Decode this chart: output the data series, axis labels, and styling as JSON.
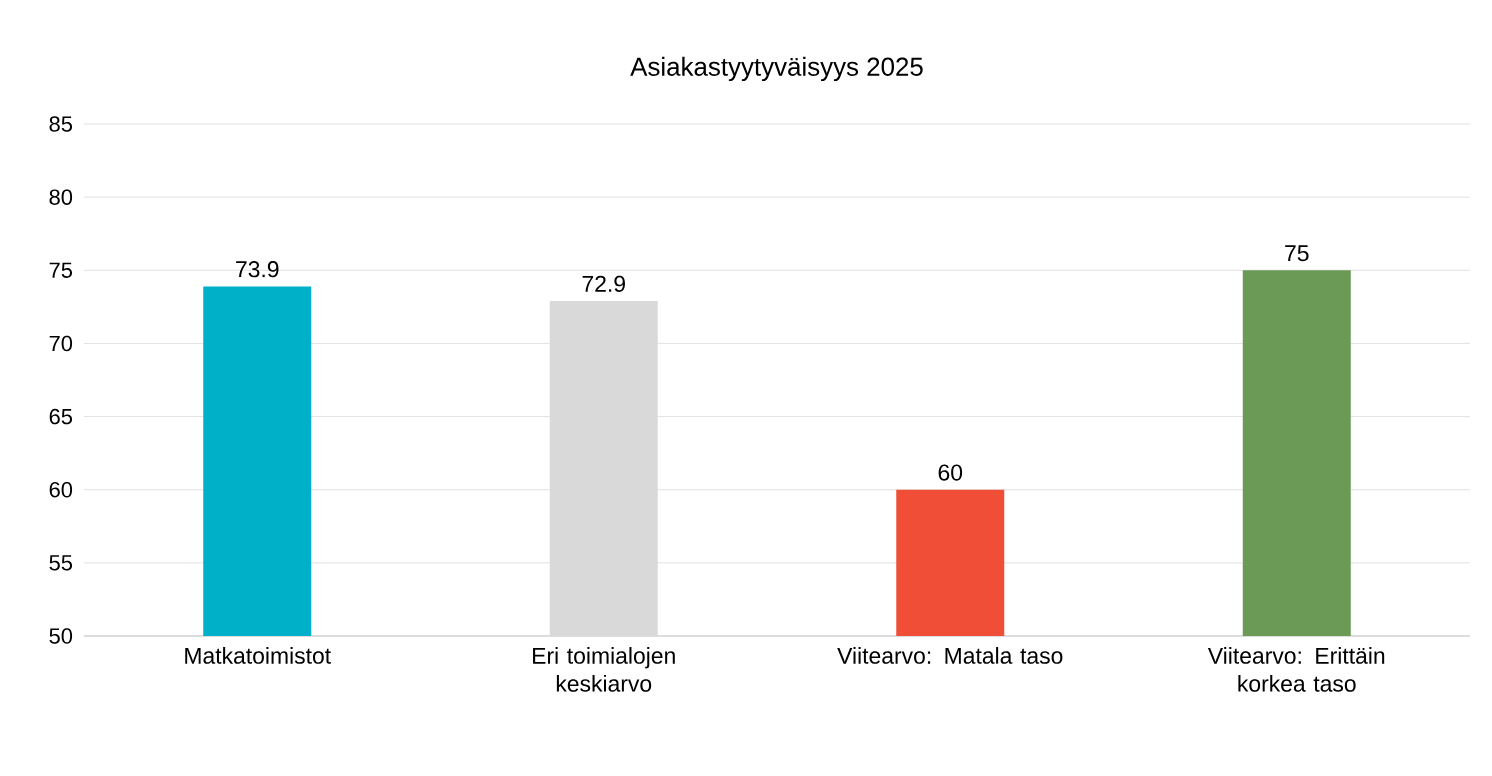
{
  "chart_data": {
    "type": "bar",
    "title": "Asiakastyytyväisyys 2025",
    "categories": [
      "Matkatoimistot",
      "Eri toimialojen keskiarvo",
      "Viitearvo: Matala taso",
      "Viitearvo: Erittäin korkea taso"
    ],
    "values": [
      73.9,
      72.9,
      60,
      75
    ],
    "colors": [
      "#00afc8",
      "#d9d9d9",
      "#f04e37",
      "#6a9a55"
    ],
    "ylim": [
      50,
      85
    ],
    "yticks": [
      50,
      55,
      60,
      65,
      70,
      75,
      80,
      85
    ],
    "grid": "y",
    "data_labels": true
  }
}
